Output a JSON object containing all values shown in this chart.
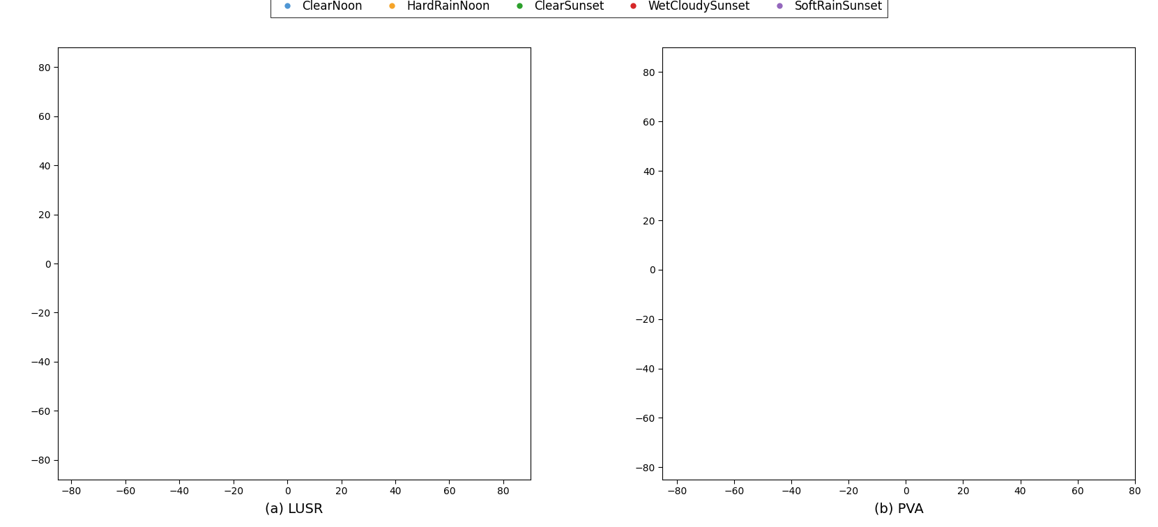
{
  "title_left": "(a) LUSR",
  "title_right": "(b) PVA",
  "legend_labels": [
    "ClearNoon",
    "HardRainNoon",
    "ClearSunset",
    "WetCloudySunset",
    "SoftRainSunset"
  ],
  "legend_colors": [
    "#4e96d4",
    "#f5a429",
    "#2ca02c",
    "#d62728",
    "#9467bd"
  ],
  "marker_size": 3,
  "background_color": "#ffffff",
  "left_xlim": [
    -85,
    90
  ],
  "left_ylim": [
    -88,
    88
  ],
  "right_xlim": [
    -85,
    80
  ],
  "right_ylim": [
    -85,
    90
  ],
  "legend_fontsize": 12,
  "tick_fontsize": 10,
  "label_fontsize": 14
}
